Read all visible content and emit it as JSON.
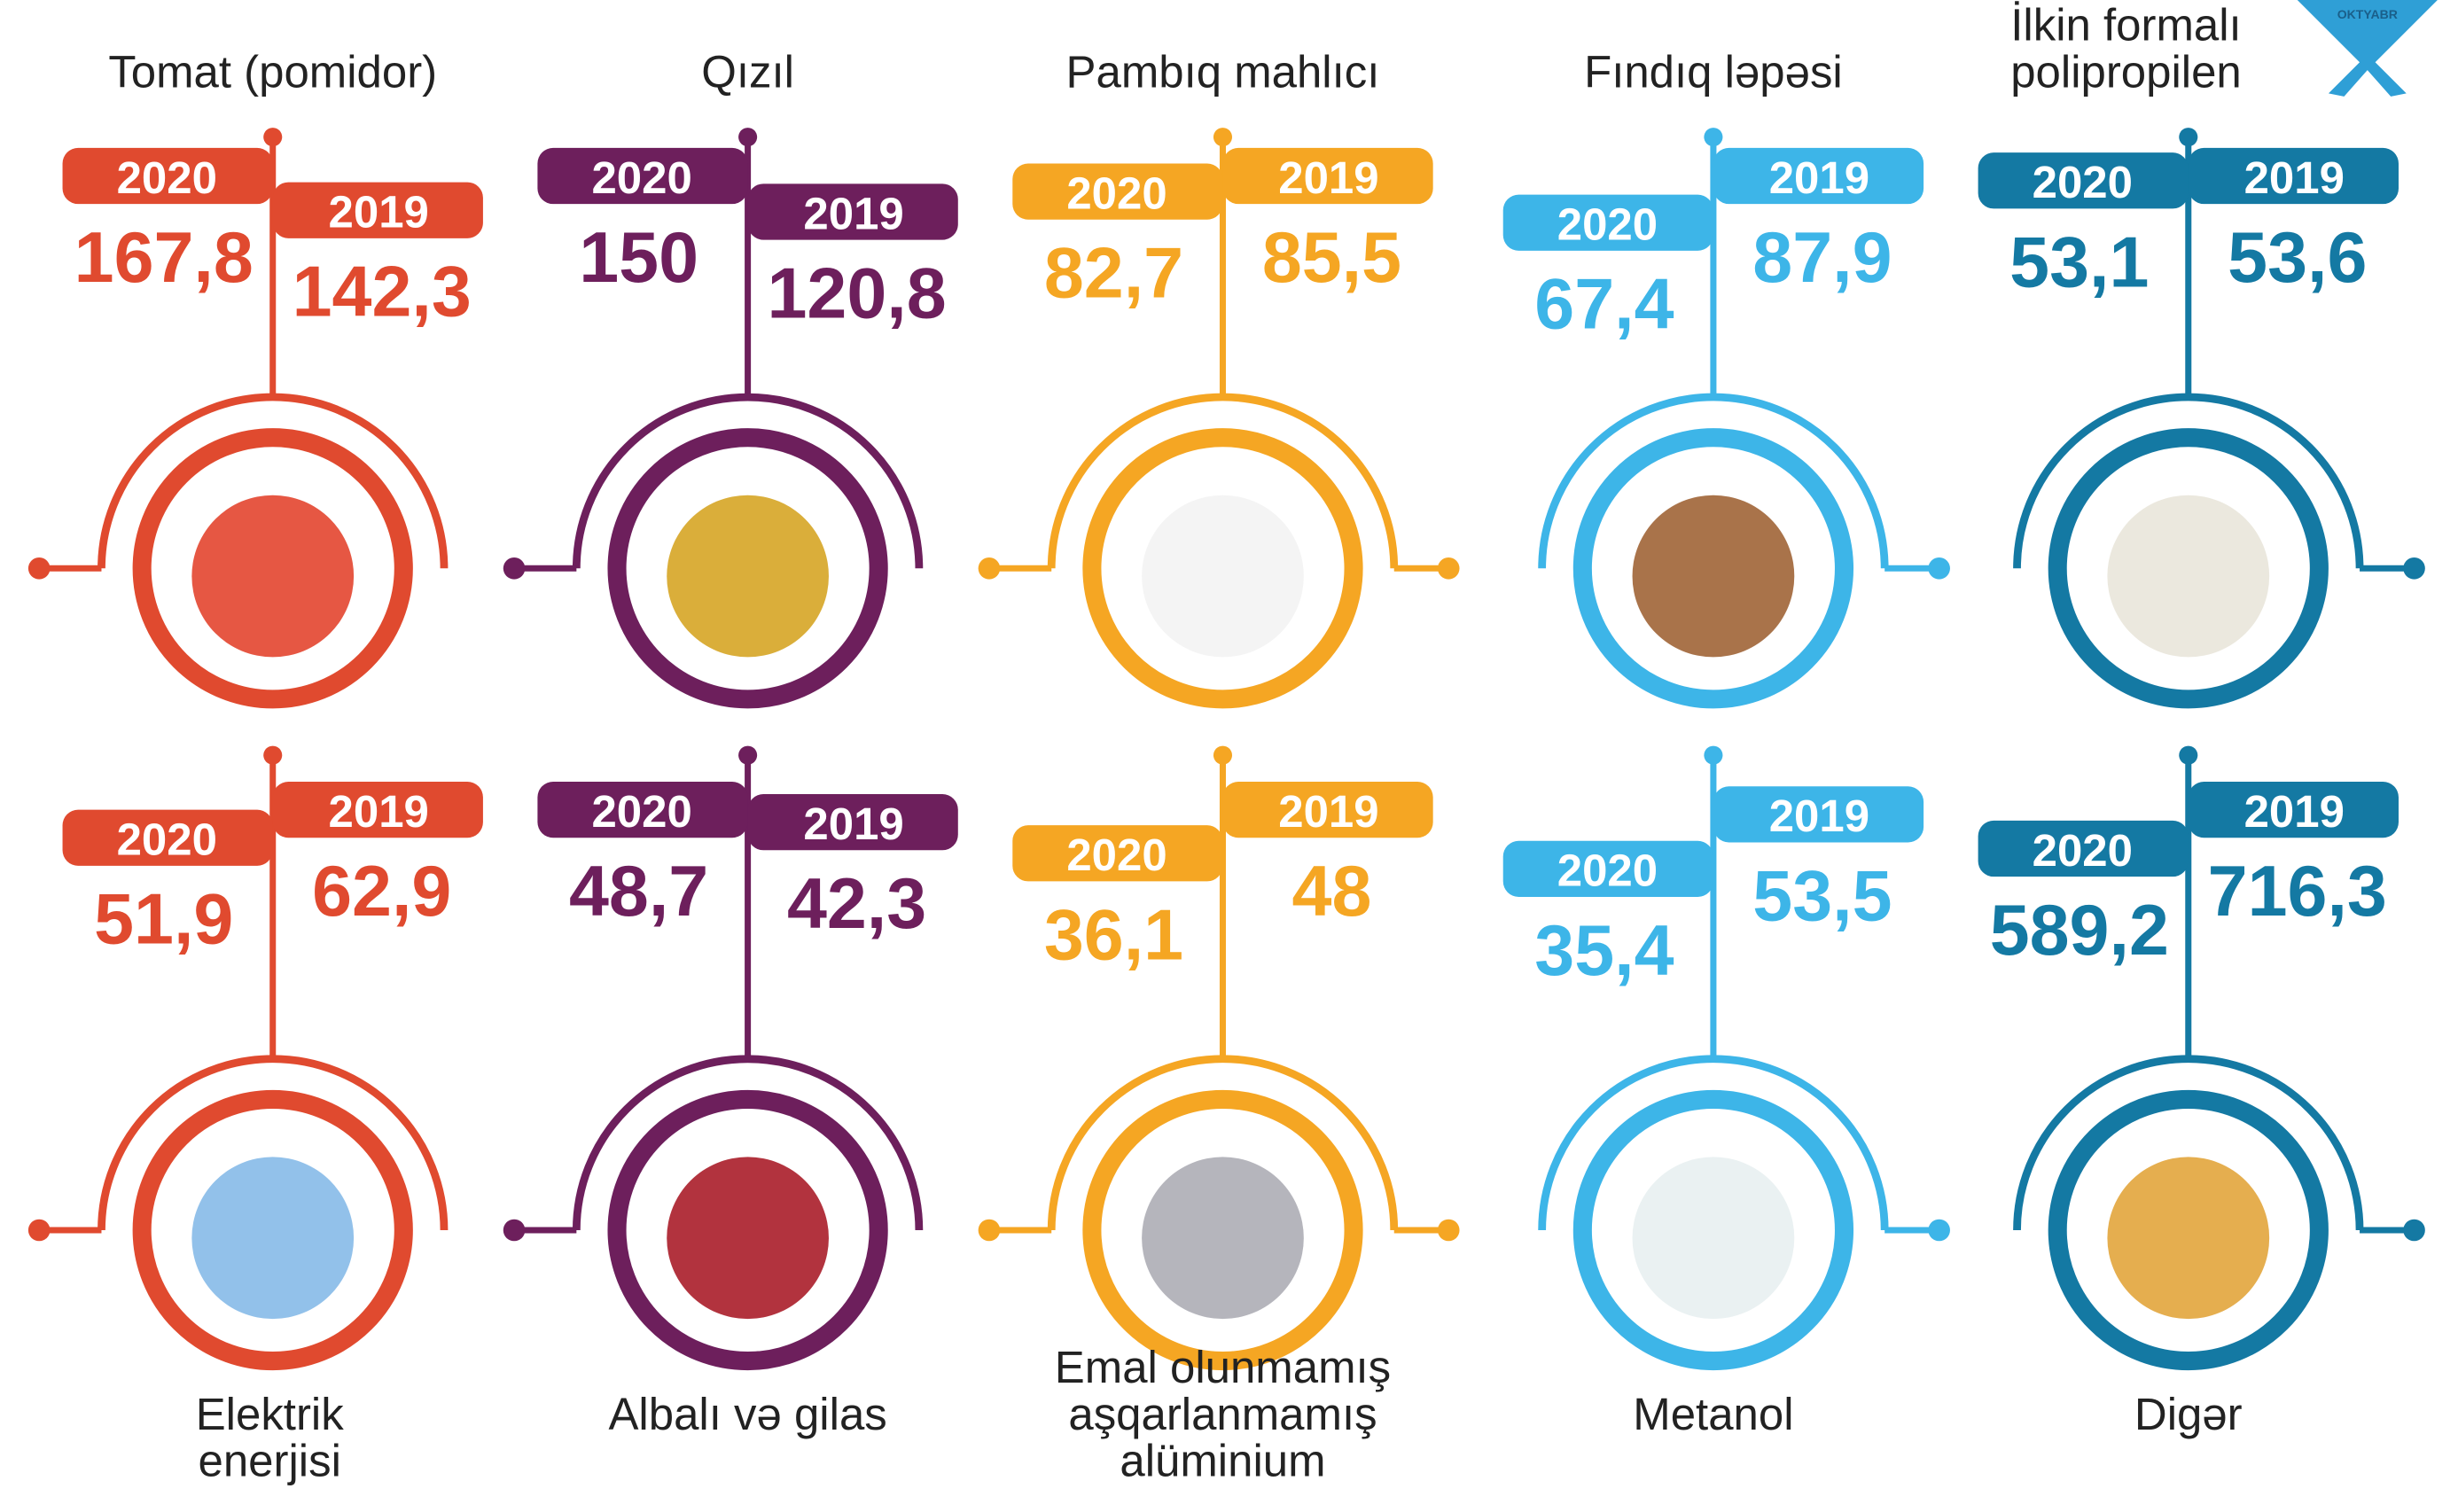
{
  "logo": "OKTYABR",
  "items": [
    {
      "label": [
        "Tomat (pomidor)"
      ],
      "year_a": "2020",
      "value_a": "167,8",
      "year_b": "2019",
      "value_b": "142,3"
    },
    {
      "label": [
        "Qızıl"
      ],
      "year_a": "2020",
      "value_a": "150",
      "year_b": "2019",
      "value_b": "120,8"
    },
    {
      "label": [
        "Pambıq mahlıcı"
      ],
      "year_a": "2020",
      "value_a": "82,7",
      "year_b": "2019",
      "value_b": "85,5"
    },
    {
      "label": [
        "Fındıq ləpəsi"
      ],
      "year_a": "2020",
      "value_a": "67,4",
      "year_b": "2019",
      "value_b": "87,9"
    },
    {
      "label": [
        "İlkin formalı",
        "polipropilen"
      ],
      "year_a": "2020",
      "value_a": "53,1",
      "year_b": "2019",
      "value_b": "53,6"
    },
    {
      "label": [
        "Elektrik",
        "enerjisi"
      ],
      "year_a": "2020",
      "value_a": "51,9",
      "year_b": "2019",
      "value_b": "62,9"
    },
    {
      "label": [
        "Albalı və gilas"
      ],
      "year_a": "2020",
      "value_a": "48,7",
      "year_b": "2019",
      "value_b": "42,3"
    },
    {
      "label": [
        "Emal olunmamış",
        "aşqarlanmamış",
        "alüminium"
      ],
      "year_a": "2020",
      "value_a": "36,1",
      "year_b": "2019",
      "value_b": "48"
    },
    {
      "label": [
        "Metanol"
      ],
      "year_a": "2020",
      "value_a": "35,4",
      "year_b": "2019",
      "value_b": "53,5"
    },
    {
      "label": [
        "Digər"
      ],
      "year_a": "2020",
      "value_a": "589,2",
      "year_b": "2019",
      "value_b": "716,3"
    }
  ]
}
